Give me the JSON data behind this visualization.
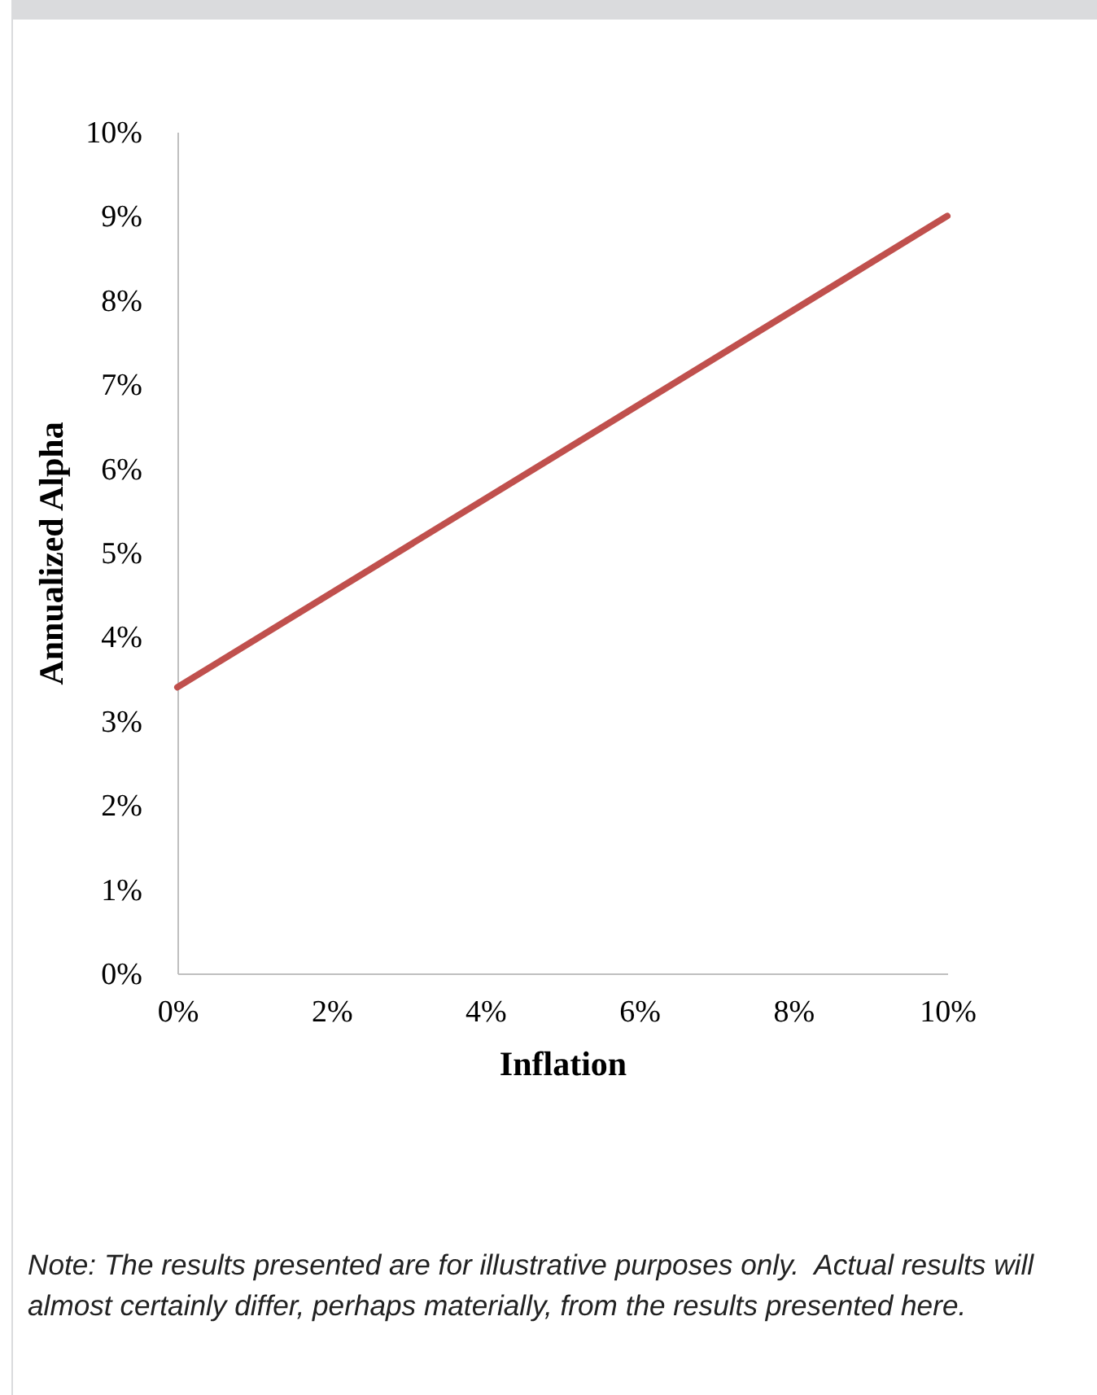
{
  "chart_data": {
    "type": "line",
    "xlabel": "Inflation",
    "ylabel": "Annualized Alpha",
    "x": [
      0,
      10
    ],
    "series": [
      {
        "color": "#c0504d",
        "values": [
          3.4,
          9.0
        ]
      }
    ],
    "xlim": [
      0,
      10
    ],
    "ylim": [
      0,
      10
    ],
    "xticks": [
      {
        "value": 0,
        "label": "0%"
      },
      {
        "value": 2,
        "label": "2%"
      },
      {
        "value": 4,
        "label": "4%"
      },
      {
        "value": 6,
        "label": "6%"
      },
      {
        "value": 8,
        "label": "8%"
      },
      {
        "value": 10,
        "label": "10%"
      }
    ],
    "yticks": [
      {
        "value": 0,
        "label": "0%"
      },
      {
        "value": 1,
        "label": "1%"
      },
      {
        "value": 2,
        "label": "2%"
      },
      {
        "value": 3,
        "label": "3%"
      },
      {
        "value": 4,
        "label": "4%"
      },
      {
        "value": 5,
        "label": "5%"
      },
      {
        "value": 6,
        "label": "6%"
      },
      {
        "value": 7,
        "label": "7%"
      },
      {
        "value": 8,
        "label": "8%"
      },
      {
        "value": 9,
        "label": "9%"
      },
      {
        "value": 10,
        "label": "10%"
      }
    ],
    "line_style": "solid",
    "annotations": [
      "Note: The results presented are for illustrative purposes only.  Actual results will almost certainly differ, perhaps materially, from the results presented here."
    ]
  }
}
